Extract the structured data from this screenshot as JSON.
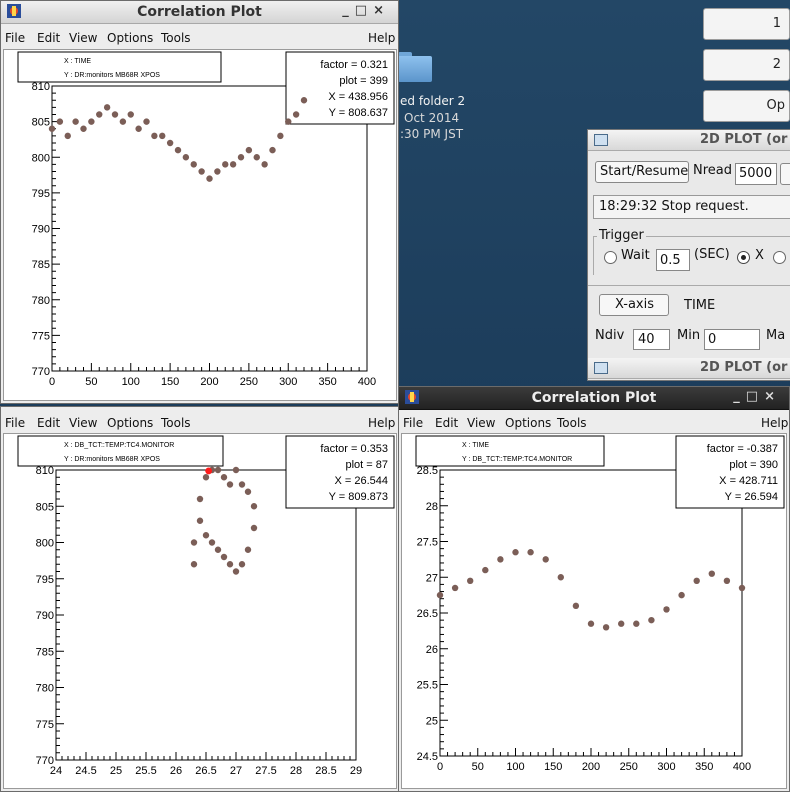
{
  "windows": {
    "top_left": {
      "title": "Correlation Plot",
      "menu": {
        "file": "File",
        "edit": "Edit",
        "view": "View",
        "options": "Options",
        "tools": "Tools",
        "help": "Help"
      },
      "legend": {
        "x": "X : TIME",
        "y": "Y : DR:monitors MB68R XPOS"
      },
      "stats": {
        "factor": "factor =   0.321",
        "plot": "plot = 399",
        "x": "X     = 438.956",
        "y": "Y     = 808.637"
      }
    },
    "bottom_left": {
      "menu": {
        "file": "File",
        "edit": "Edit",
        "view": "View",
        "options": "Options",
        "tools": "Tools",
        "help": "Help"
      },
      "legend": {
        "x": "X : DB_TCT::TEMP:TC4.MONITOR",
        "y": "Y : DR:monitors MB68R XPOS"
      },
      "stats": {
        "factor": "factor =  0.353",
        "plot": "plot = 87",
        "x": "X     = 26.544",
        "y": "Y     = 809.873"
      }
    },
    "bottom_right": {
      "title": "Correlation Plot",
      "menu": {
        "file": "File",
        "edit": "Edit",
        "view": "View",
        "options": "Options",
        "tools": "Tools",
        "help": "Help"
      },
      "legend": {
        "x": "X : TIME",
        "y": "Y : DB_TCT::TEMP:TC4.MONITOR"
      },
      "stats": {
        "factor": "factor = -0.387",
        "plot": "plot = 390",
        "x": "X     = 428.711",
        "y": "Y     = 26.594"
      }
    }
  },
  "desktop": {
    "folder_label": "ed folder 2",
    "date_line": "Oct 2014",
    "time_line": ":30 PM JST"
  },
  "right_buttons": {
    "b1": "1",
    "b2": "2",
    "b3": "Op"
  },
  "plot2d": {
    "title": "2D PLOT (or",
    "start_button": "Start/Resume",
    "nread_label": "Nread",
    "nread_value": "5000",
    "status": "18:29:32 Stop request.",
    "trigger_label": "Trigger",
    "wait_label": "Wait",
    "wait_value": "0.5",
    "sec_label": "(SEC)",
    "x_label": "X",
    "xaxis_button": "X-axis",
    "xaxis_value": "TIME",
    "ndiv_label": "Ndiv",
    "ndiv_value": "40",
    "min_label": "Min",
    "min_value": "0",
    "max_label": "Ma",
    "second_title": "2D PLOT (or"
  },
  "chart_data": [
    {
      "type": "scatter",
      "ylim": [
        770,
        810
      ],
      "xlim": [
        0,
        400
      ],
      "xticks": [
        "0",
        "50",
        "100",
        "150",
        "200",
        "250",
        "300",
        "350",
        "400"
      ],
      "yticks": [
        "770",
        "775",
        "780",
        "785",
        "790",
        "795",
        "800",
        "805",
        "810"
      ],
      "description_points": "x = TIME, y = XPOS",
      "x": [
        0,
        10,
        20,
        30,
        40,
        50,
        60,
        70,
        80,
        90,
        100,
        110,
        120,
        130,
        140,
        150,
        160,
        170,
        180,
        190,
        200,
        210,
        220,
        230,
        240,
        250,
        260,
        270,
        280,
        290,
        300,
        310,
        320
      ],
      "y": [
        804,
        805,
        803,
        805,
        804,
        805,
        806,
        807,
        806,
        805,
        806,
        804,
        805,
        803,
        803,
        802,
        801,
        800,
        799,
        798,
        797,
        798,
        799,
        799,
        800,
        801,
        800,
        799,
        801,
        803,
        805,
        806,
        808
      ]
    },
    {
      "type": "scatter",
      "ylim": [
        770,
        810
      ],
      "xlim": [
        24,
        29
      ],
      "xticks": [
        "24",
        "24.5",
        "25",
        "25.5",
        "26",
        "26.5",
        "27",
        "27.5",
        "28",
        "28.5",
        "29"
      ],
      "yticks": [
        "770",
        "775",
        "780",
        "785",
        "790",
        "795",
        "800",
        "805",
        "810"
      ],
      "x": [
        26.5,
        26.6,
        26.7,
        26.8,
        26.9,
        27.0,
        27.1,
        27.2,
        27.3,
        27.3,
        27.2,
        27.1,
        27.0,
        26.9,
        26.8,
        26.7,
        26.6,
        26.5,
        26.4,
        26.3,
        26.3,
        26.4
      ],
      "y": [
        809,
        810,
        810,
        809,
        808,
        810,
        808,
        807,
        805,
        802,
        799,
        797,
        796,
        797,
        798,
        799,
        800,
        801,
        803,
        800,
        797,
        806
      ]
    },
    {
      "type": "scatter",
      "ylim": [
        24.5,
        28.5
      ],
      "xlim": [
        0,
        400
      ],
      "xticks": [
        "0",
        "50",
        "100",
        "150",
        "200",
        "250",
        "300",
        "350",
        "400"
      ],
      "yticks": [
        "24.5",
        "25",
        "25.5",
        "26",
        "26.5",
        "27",
        "27.5",
        "28",
        "28.5"
      ],
      "x": [
        0,
        20,
        40,
        60,
        80,
        100,
        120,
        140,
        160,
        180,
        200,
        220,
        240,
        260,
        280,
        300,
        320,
        340,
        360,
        380,
        400
      ],
      "y": [
        26.75,
        26.85,
        26.95,
        27.1,
        27.25,
        27.35,
        27.35,
        27.25,
        27.0,
        26.6,
        26.35,
        26.3,
        26.35,
        26.35,
        26.4,
        26.55,
        26.75,
        26.95,
        27.05,
        26.95,
        26.85
      ]
    }
  ],
  "colors": {
    "point": "#7b5e57",
    "highlight": "#ff1a1a",
    "desktop": "#1f3f5d"
  }
}
